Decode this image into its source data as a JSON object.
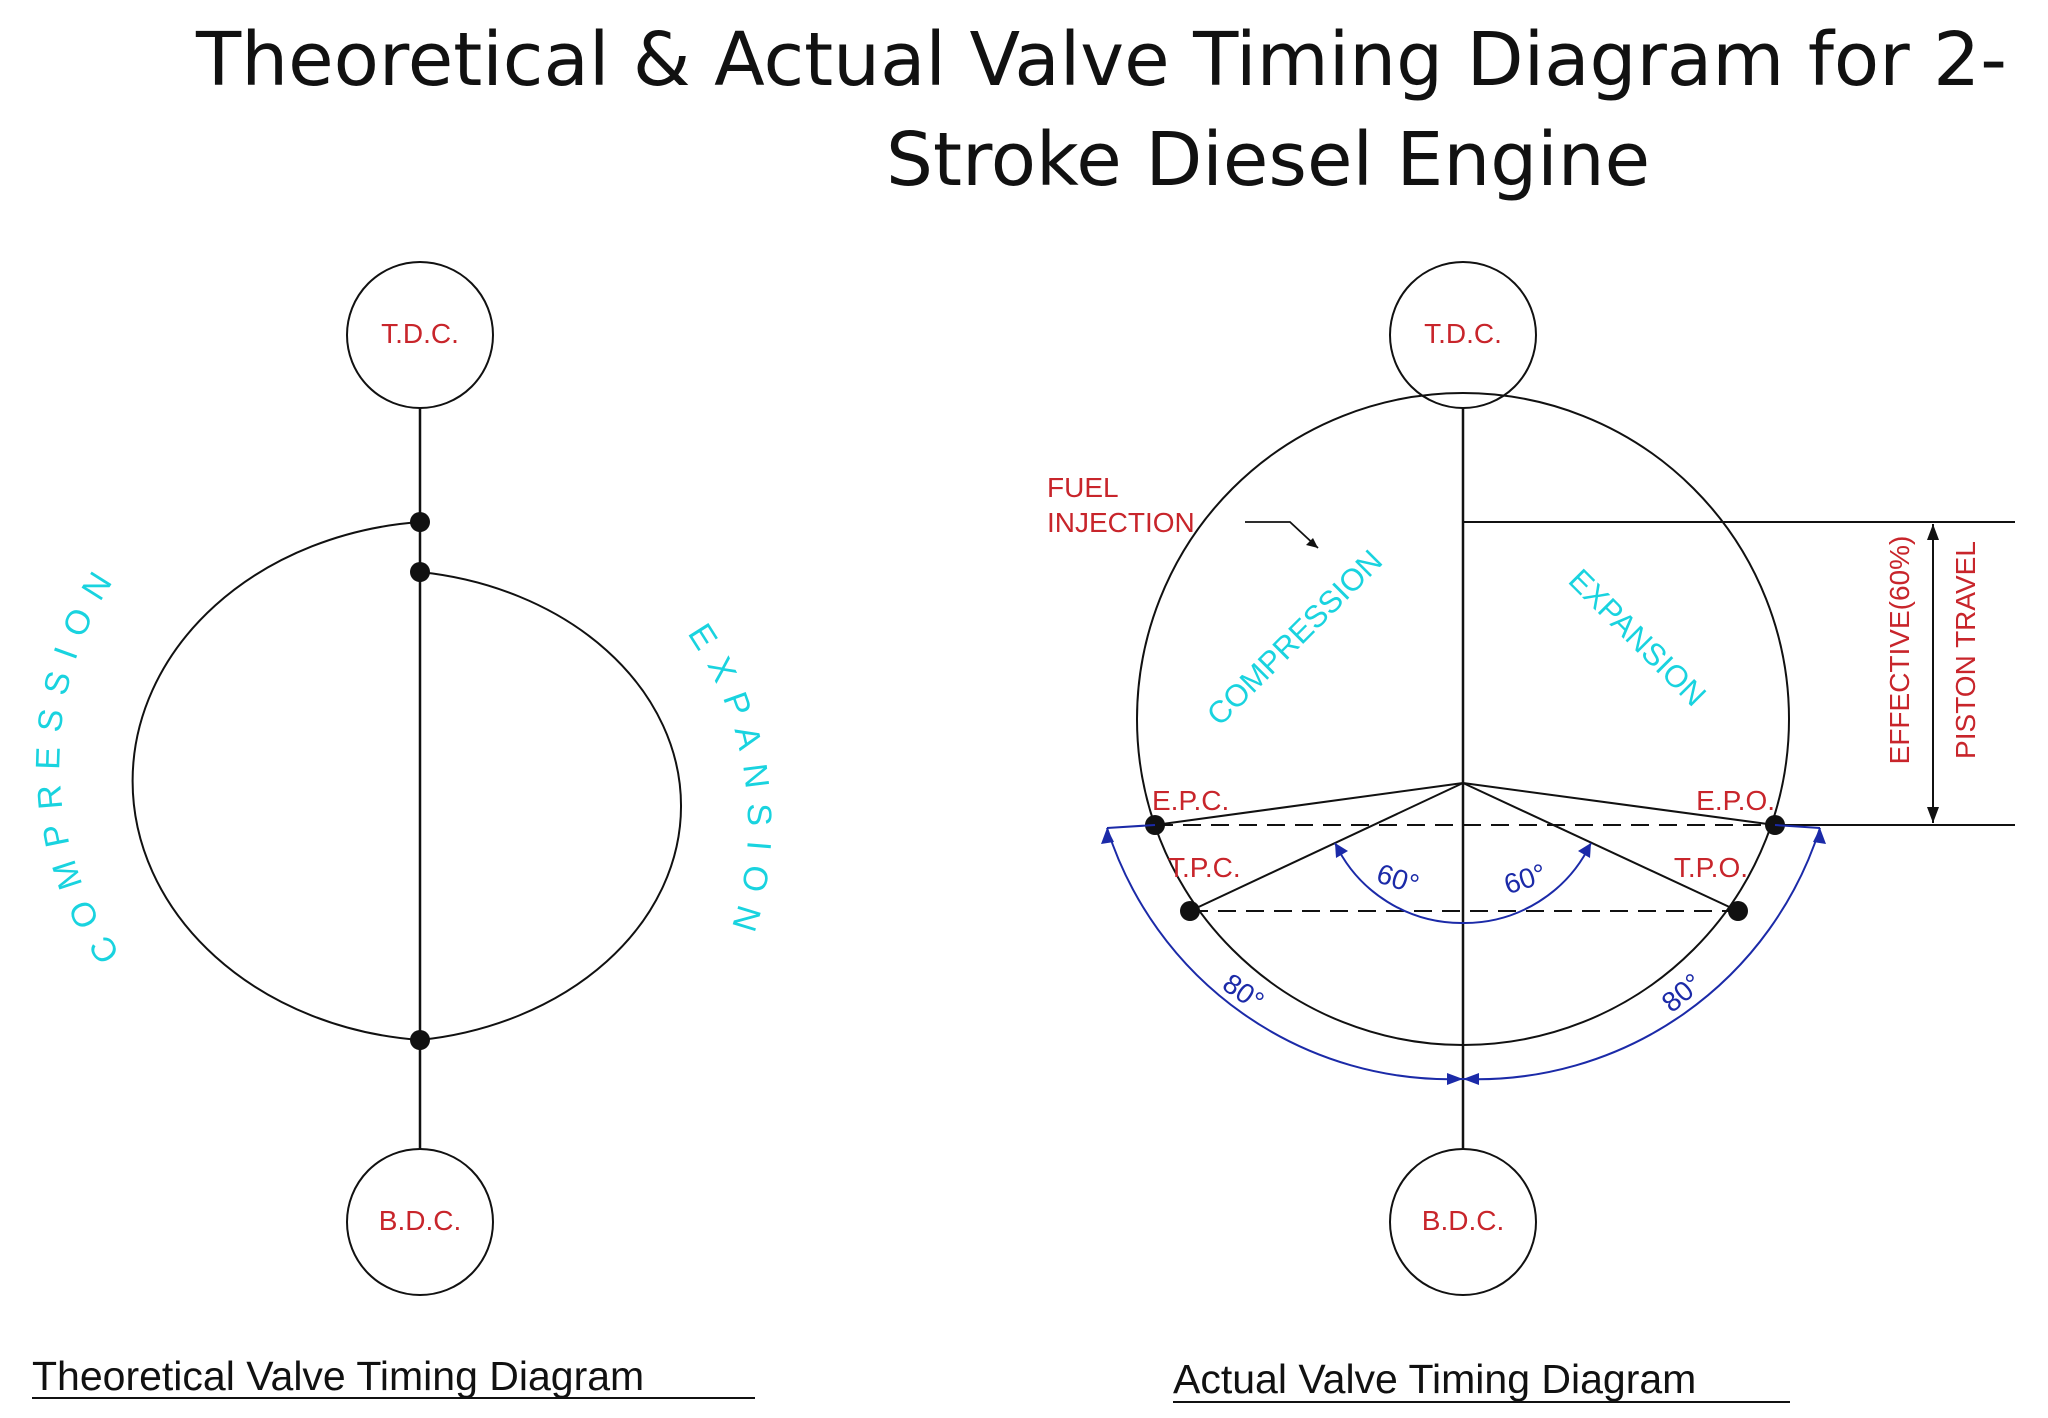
{
  "title": {
    "line1": "Theoretical & Actual Valve Timing Diagram for 2-",
    "line2": "Stroke Diesel Engine"
  },
  "colors": {
    "point_labels": "#c8252b",
    "stroke_labels": "#19d3df",
    "dimensions": "#1b2aa8",
    "lines": "#111111"
  },
  "theoretical": {
    "tdc": "T.D.C.",
    "bdc": "B.D.C.",
    "compression": "COMPRESSION",
    "expansion": "EXPANSION",
    "caption": "Theoretical Valve Timing Diagram"
  },
  "actual": {
    "tdc": "T.D.C.",
    "bdc": "B.D.C.",
    "fuel_injection_1": "FUEL",
    "fuel_injection_2": "INJECTION",
    "compression": "COMPRESSION",
    "expansion": "EXPANSION",
    "epc": "E.P.C.",
    "epo": "E.P.O.",
    "tpc": "T.P.C.",
    "tpo": "T.P.O.",
    "angle_left_inner": "60°",
    "angle_right_inner": "60°",
    "angle_left_outer": "80°",
    "angle_right_outer": "80°",
    "effective": "EFFECTIVE(60%)",
    "piston_travel": "PISTON TRAVEL",
    "caption": "Actual Valve Timing Diagram"
  }
}
